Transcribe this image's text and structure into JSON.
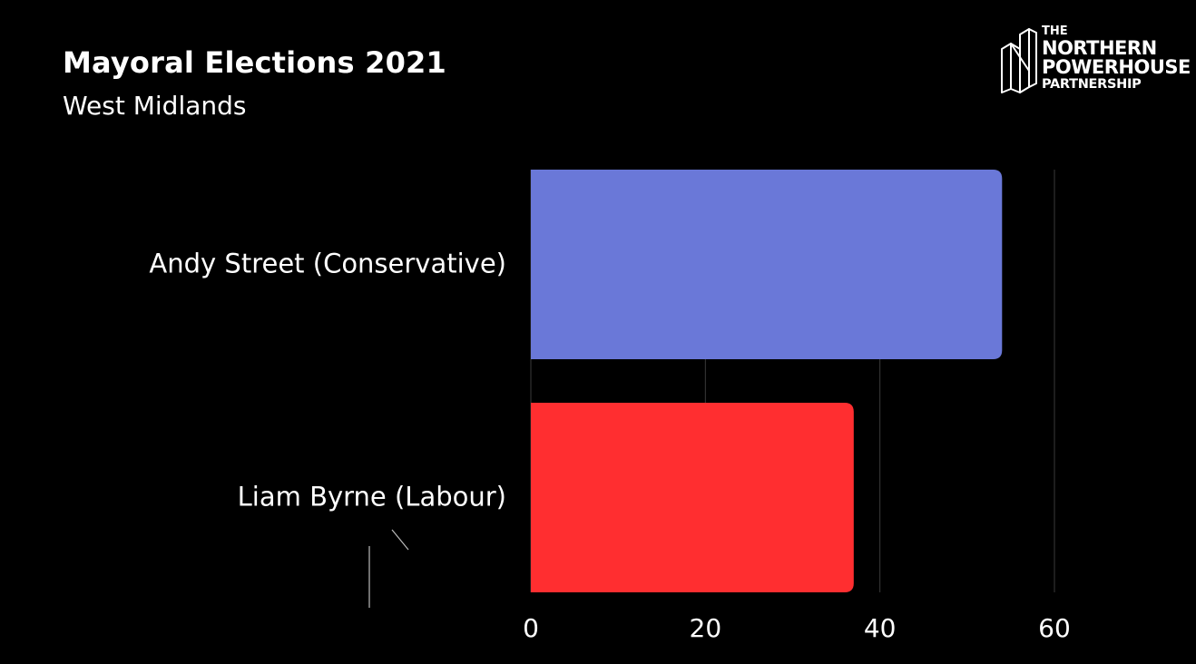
{
  "header": {
    "title": "Mayoral Elections 2021",
    "subtitle": "West Midlands"
  },
  "logo": {
    "line1": "THE",
    "line2": "NORTHERN",
    "line3": "POWERHOUSE",
    "line4": "PARTNERSHIP"
  },
  "chart_data": {
    "type": "bar",
    "orientation": "horizontal",
    "title": "Mayoral Elections 2021",
    "subtitle": "West Midlands",
    "categories": [
      "Andy Street (Conservative)",
      "Liam Byrne (Labour)"
    ],
    "values": [
      54,
      37
    ],
    "colors": [
      "#6a78d8",
      "#ff2e30"
    ],
    "xlim": [
      0,
      60
    ],
    "xticks": [
      0,
      20,
      40,
      60
    ],
    "xlabel": "",
    "ylabel": "",
    "grid": true
  }
}
